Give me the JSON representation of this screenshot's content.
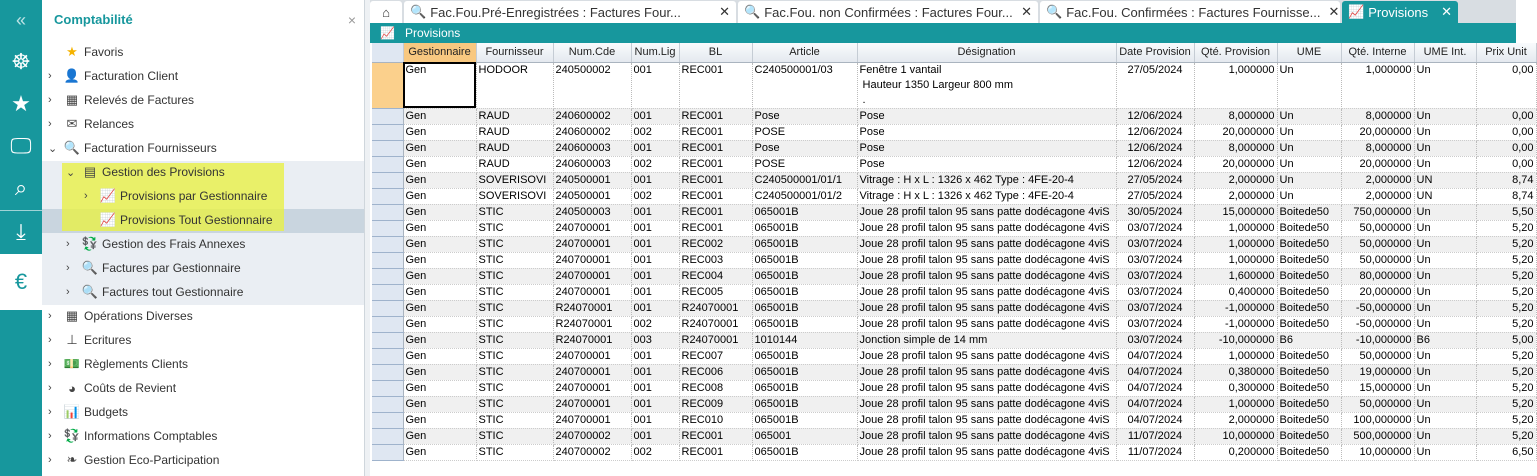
{
  "rail": {
    "icons": [
      "collapse-icon",
      "helm-icon",
      "star-icon",
      "monitor-icon",
      "search-icon",
      "download-icon",
      "invoice-euro-icon"
    ]
  },
  "sidebar": {
    "title": "Comptabilité",
    "close": "×",
    "items": [
      {
        "label": "Favoris",
        "icon": "star-icon",
        "glyph": "★",
        "level": 0,
        "chev": ""
      },
      {
        "label": "Facturation Client",
        "icon": "client-billing-icon",
        "glyph": "👤",
        "level": 0,
        "chev": "›"
      },
      {
        "label": "Relevés de Factures",
        "icon": "statement-icon",
        "glyph": "▦",
        "level": 0,
        "chev": "›"
      },
      {
        "label": "Relances",
        "icon": "reminder-mail-icon",
        "glyph": "✉",
        "level": 0,
        "chev": "›"
      },
      {
        "label": "Facturation Fournisseurs",
        "icon": "search-icon",
        "glyph": "🔍",
        "level": 0,
        "chev": "⌄"
      },
      {
        "label": "Gestion des Provisions",
        "icon": "document-icon",
        "glyph": "▤",
        "level": 1,
        "chev": "⌄"
      },
      {
        "label": "Provisions par Gestionnaire",
        "icon": "line-chart-icon",
        "glyph": "📈",
        "level": 2,
        "chev": "›"
      },
      {
        "label": "Provisions Tout Gestionnaire",
        "icon": "line-chart-icon",
        "glyph": "📈",
        "level": 2,
        "chev": ""
      },
      {
        "label": "Gestion des Frais Annexes",
        "icon": "money-exchange-icon",
        "glyph": "💱",
        "level": 1,
        "chev": "›"
      },
      {
        "label": "Factures par Gestionnaire",
        "icon": "search-icon",
        "glyph": "🔍",
        "level": 1,
        "chev": "›"
      },
      {
        "label": "Factures tout Gestionnaire",
        "icon": "search-icon",
        "glyph": "🔍",
        "level": 1,
        "chev": "›"
      },
      {
        "label": "Opérations Diverses",
        "icon": "calculator-icon",
        "glyph": "▦",
        "level": 0,
        "chev": "›"
      },
      {
        "label": "Ecritures",
        "icon": "stamp-icon",
        "glyph": "⊥",
        "level": 0,
        "chev": "›"
      },
      {
        "label": "Règlements Clients",
        "icon": "money-icon",
        "glyph": "💵",
        "level": 0,
        "chev": "›"
      },
      {
        "label": "Coûts de Revient",
        "icon": "pie-chart-icon",
        "glyph": "◕",
        "level": 0,
        "chev": "›"
      },
      {
        "label": "Budgets",
        "icon": "bar-chart-icon",
        "glyph": "📊",
        "level": 0,
        "chev": "›"
      },
      {
        "label": "Informations Comptables",
        "icon": "money-exchange-icon",
        "glyph": "💱",
        "level": 0,
        "chev": "›"
      },
      {
        "label": "Gestion Eco-Participation",
        "icon": "leaf-icon",
        "glyph": "❧",
        "level": 0,
        "chev": "›"
      }
    ]
  },
  "tabs": [
    {
      "label": "Fac.Fou.Pré-Enregistrées : Factures Four...",
      "icon": "search-icon",
      "active": false
    },
    {
      "label": "Fac.Fou. non Confirmées : Factures Four...",
      "icon": "search-icon",
      "active": false
    },
    {
      "label": "Fac.Fou. Confirmées : Factures Fournisse...",
      "icon": "search-icon",
      "active": false
    },
    {
      "label": "Provisions",
      "icon": "line-chart-icon",
      "active": true
    }
  ],
  "toolbar": {
    "title": "Provisions"
  },
  "table": {
    "columns": [
      "Gestionnaire",
      "Fournisseur",
      "Num.Cde",
      "Num.Lig",
      "BL",
      "Article",
      "Désignation",
      "Date Provision",
      "Qté.  Provision",
      "UME",
      "Qté.  Interne",
      "UME Int.",
      "Prix Unit"
    ],
    "rows": [
      [
        "Gen",
        "HODOOR",
        "240500002",
        "001",
        "REC001",
        "C240500001/03",
        "Fenêtre 1 vantail\n Hauteur 1350 Largeur 800 mm\n .",
        "27/05/2024",
        "1,000000",
        "Un",
        "1,000000",
        "Un",
        "0,00"
      ],
      [
        "Gen",
        "RAUD",
        "240600002",
        "001",
        "REC001",
        "Pose",
        "Pose",
        "12/06/2024",
        "8,000000",
        "Un",
        "8,000000",
        "Un",
        "0,00"
      ],
      [
        "Gen",
        "RAUD",
        "240600002",
        "002",
        "REC001",
        "POSE",
        "Pose",
        "12/06/2024",
        "20,000000",
        "Un",
        "20,000000",
        "Un",
        "0,00"
      ],
      [
        "Gen",
        "RAUD",
        "240600003",
        "001",
        "REC001",
        "Pose",
        "Pose",
        "12/06/2024",
        "8,000000",
        "Un",
        "8,000000",
        "Un",
        "0,00"
      ],
      [
        "Gen",
        "RAUD",
        "240600003",
        "002",
        "REC001",
        "POSE",
        "Pose",
        "12/06/2024",
        "20,000000",
        "Un",
        "20,000000",
        "Un",
        "0,00"
      ],
      [
        "Gen",
        "SOVERISOVI",
        "240500001",
        "001",
        "REC001",
        "C240500001/01/1",
        "Vitrage : H x L : 1326 x 462 Type : 4FE-20-4",
        "27/05/2024",
        "2,000000",
        "Un",
        "2,000000",
        "UN",
        "8,74"
      ],
      [
        "Gen",
        "SOVERISOVI",
        "240500001",
        "002",
        "REC001",
        "C240500001/01/2",
        "Vitrage : H x L : 1326 x 462 Type : 4FE-20-4",
        "27/05/2024",
        "2,000000",
        "Un",
        "2,000000",
        "UN",
        "8,74"
      ],
      [
        "Gen",
        "STIC",
        "240500003",
        "001",
        "REC001",
        "065001B",
        "Joue 28 profil talon 95 sans patte dodécagone 4viS",
        "30/05/2024",
        "15,000000",
        "Boitede50",
        "750,000000",
        "Un",
        "5,50"
      ],
      [
        "Gen",
        "STIC",
        "240700001",
        "001",
        "REC001",
        "065001B",
        "Joue 28 profil talon 95 sans patte dodécagone 4viS",
        "03/07/2024",
        "1,000000",
        "Boitede50",
        "50,000000",
        "Un",
        "5,20"
      ],
      [
        "Gen",
        "STIC",
        "240700001",
        "001",
        "REC002",
        "065001B",
        "Joue 28 profil talon 95 sans patte dodécagone 4viS",
        "03/07/2024",
        "1,000000",
        "Boitede50",
        "50,000000",
        "Un",
        "5,20"
      ],
      [
        "Gen",
        "STIC",
        "240700001",
        "001",
        "REC003",
        "065001B",
        "Joue 28 profil talon 95 sans patte dodécagone 4viS",
        "03/07/2024",
        "1,000000",
        "Boitede50",
        "50,000000",
        "Un",
        "5,20"
      ],
      [
        "Gen",
        "STIC",
        "240700001",
        "001",
        "REC004",
        "065001B",
        "Joue 28 profil talon 95 sans patte dodécagone 4viS",
        "03/07/2024",
        "1,600000",
        "Boitede50",
        "80,000000",
        "Un",
        "5,20"
      ],
      [
        "Gen",
        "STIC",
        "240700001",
        "001",
        "REC005",
        "065001B",
        "Joue 28 profil talon 95 sans patte dodécagone 4viS",
        "03/07/2024",
        "0,400000",
        "Boitede50",
        "20,000000",
        "Un",
        "5,20"
      ],
      [
        "Gen",
        "STIC",
        "R24070001",
        "001",
        "R24070001",
        "065001B",
        "Joue 28 profil talon 95 sans patte dodécagone 4viS",
        "03/07/2024",
        "-1,000000",
        "Boitede50",
        "-50,000000",
        "Un",
        "5,20"
      ],
      [
        "Gen",
        "STIC",
        "R24070001",
        "002",
        "R24070001",
        "065001B",
        "Joue 28 profil talon 95 sans patte dodécagone 4viS",
        "03/07/2024",
        "-1,000000",
        "Boitede50",
        "-50,000000",
        "Un",
        "5,20"
      ],
      [
        "Gen",
        "STIC",
        "R24070001",
        "003",
        "R24070001",
        "1010144",
        "Jonction simple de 14 mm",
        "03/07/2024",
        "-10,000000",
        "B6",
        "-10,000000",
        "B6",
        "5,00"
      ],
      [
        "Gen",
        "STIC",
        "240700001",
        "001",
        "REC007",
        "065001B",
        "Joue 28 profil talon 95 sans patte dodécagone 4viS",
        "04/07/2024",
        "1,000000",
        "Boitede50",
        "50,000000",
        "Un",
        "5,20"
      ],
      [
        "Gen",
        "STIC",
        "240700001",
        "001",
        "REC006",
        "065001B",
        "Joue 28 profil talon 95 sans patte dodécagone 4viS",
        "04/07/2024",
        "0,380000",
        "Boitede50",
        "19,000000",
        "Un",
        "5,20"
      ],
      [
        "Gen",
        "STIC",
        "240700001",
        "001",
        "REC008",
        "065001B",
        "Joue 28 profil talon 95 sans patte dodécagone 4viS",
        "04/07/2024",
        "0,300000",
        "Boitede50",
        "15,000000",
        "Un",
        "5,20"
      ],
      [
        "Gen",
        "STIC",
        "240700001",
        "001",
        "REC009",
        "065001B",
        "Joue 28 profil talon 95 sans patte dodécagone 4viS",
        "04/07/2024",
        "1,000000",
        "Boitede50",
        "50,000000",
        "Un",
        "5,20"
      ],
      [
        "Gen",
        "STIC",
        "240700001",
        "001",
        "REC010",
        "065001B",
        "Joue 28 profil talon 95 sans patte dodécagone 4viS",
        "04/07/2024",
        "2,000000",
        "Boitede50",
        "100,000000",
        "Un",
        "5,20"
      ],
      [
        "Gen",
        "STIC",
        "240700002",
        "001",
        "REC001",
        "065001",
        "Joue 28 profil talon 95 sans patte dodécagone 4viS",
        "11/07/2024",
        "10,000000",
        "Boitede50",
        "500,000000",
        "Un",
        "5,20"
      ],
      [
        "Gen",
        "STIC",
        "240700002",
        "002",
        "REC001",
        "065001B",
        "Joue 28 profil talon 95 sans patte dodécagone 4viS",
        "11/07/2024",
        "0,200000",
        "Boitede50",
        "10,000000",
        "Un",
        "6,50"
      ]
    ]
  },
  "colors": {
    "accent": "#17979d",
    "highlight": "#e8f046",
    "sorted_header": "#f8c880"
  }
}
